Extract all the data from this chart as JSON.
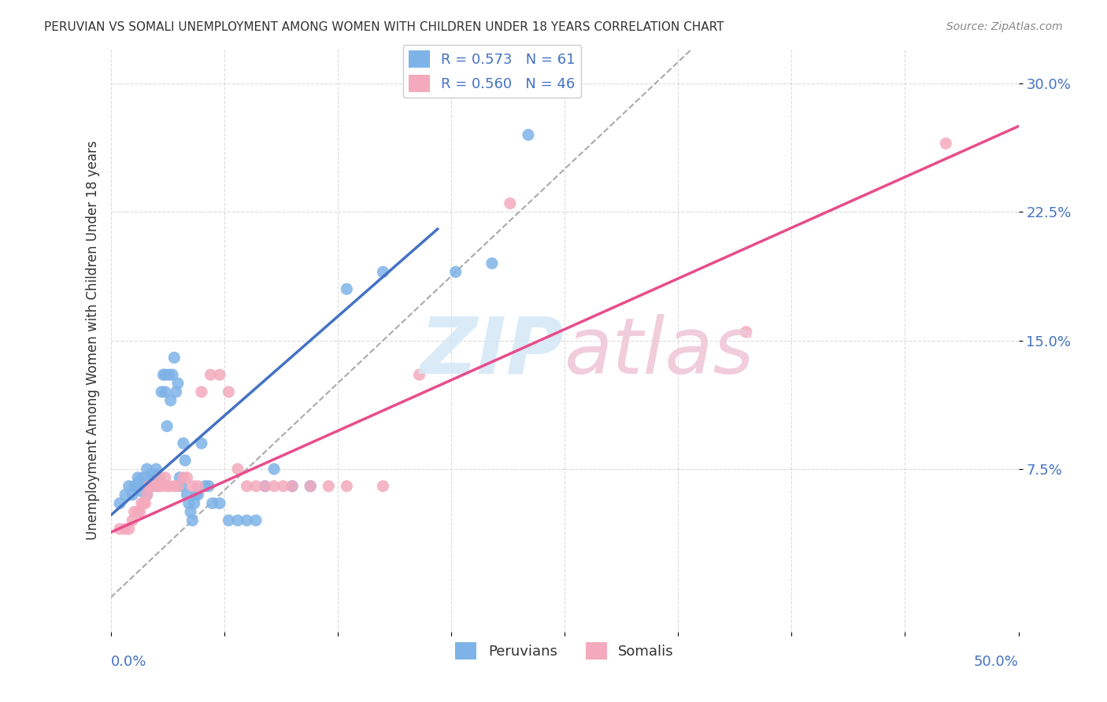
{
  "title": "PERUVIAN VS SOMALI UNEMPLOYMENT AMONG WOMEN WITH CHILDREN UNDER 18 YEARS CORRELATION CHART",
  "source": "Source: ZipAtlas.com",
  "ylabel": "Unemployment Among Women with Children Under 18 years",
  "xlim": [
    0.0,
    0.5
  ],
  "ylim": [
    -0.02,
    0.32
  ],
  "yticks": [
    0.075,
    0.15,
    0.225,
    0.3
  ],
  "ytick_labels": [
    "7.5%",
    "15.0%",
    "22.5%",
    "30.0%"
  ],
  "xticks": [
    0.0,
    0.0625,
    0.125,
    0.1875,
    0.25,
    0.3125,
    0.375,
    0.4375,
    0.5
  ],
  "peruvian_color": "#7EB3E8",
  "somali_color": "#F4AABC",
  "peruvian_R": 0.573,
  "peruvian_N": 61,
  "somali_R": 0.56,
  "somali_N": 46,
  "peruvian_scatter_x": [
    0.005,
    0.008,
    0.01,
    0.012,
    0.013,
    0.015,
    0.015,
    0.016,
    0.017,
    0.018,
    0.02,
    0.02,
    0.021,
    0.022,
    0.022,
    0.023,
    0.024,
    0.025,
    0.025,
    0.026,
    0.027,
    0.028,
    0.029,
    0.03,
    0.03,
    0.031,
    0.032,
    0.033,
    0.034,
    0.035,
    0.036,
    0.037,
    0.038,
    0.039,
    0.04,
    0.041,
    0.042,
    0.043,
    0.044,
    0.045,
    0.046,
    0.047,
    0.048,
    0.05,
    0.052,
    0.054,
    0.056,
    0.06,
    0.065,
    0.07,
    0.075,
    0.08,
    0.085,
    0.09,
    0.1,
    0.11,
    0.13,
    0.15,
    0.19,
    0.21,
    0.23
  ],
  "peruvian_scatter_y": [
    0.055,
    0.06,
    0.065,
    0.06,
    0.065,
    0.07,
    0.065,
    0.068,
    0.062,
    0.07,
    0.06,
    0.075,
    0.065,
    0.07,
    0.072,
    0.065,
    0.07,
    0.072,
    0.075,
    0.065,
    0.068,
    0.12,
    0.13,
    0.12,
    0.13,
    0.1,
    0.13,
    0.115,
    0.13,
    0.14,
    0.12,
    0.125,
    0.07,
    0.065,
    0.09,
    0.08,
    0.06,
    0.055,
    0.05,
    0.045,
    0.055,
    0.06,
    0.06,
    0.09,
    0.065,
    0.065,
    0.055,
    0.055,
    0.045,
    0.045,
    0.045,
    0.045,
    0.065,
    0.075,
    0.065,
    0.065,
    0.18,
    0.19,
    0.19,
    0.195,
    0.27
  ],
  "somali_scatter_x": [
    0.005,
    0.008,
    0.01,
    0.012,
    0.013,
    0.015,
    0.016,
    0.017,
    0.018,
    0.019,
    0.02,
    0.021,
    0.022,
    0.023,
    0.025,
    0.026,
    0.027,
    0.028,
    0.03,
    0.031,
    0.032,
    0.035,
    0.037,
    0.04,
    0.042,
    0.045,
    0.048,
    0.05,
    0.055,
    0.06,
    0.065,
    0.07,
    0.075,
    0.08,
    0.085,
    0.09,
    0.095,
    0.1,
    0.11,
    0.12,
    0.13,
    0.15,
    0.17,
    0.22,
    0.35,
    0.46
  ],
  "somali_scatter_y": [
    0.04,
    0.04,
    0.04,
    0.045,
    0.05,
    0.05,
    0.05,
    0.055,
    0.055,
    0.055,
    0.06,
    0.065,
    0.065,
    0.065,
    0.065,
    0.065,
    0.07,
    0.065,
    0.07,
    0.065,
    0.065,
    0.065,
    0.065,
    0.07,
    0.07,
    0.065,
    0.065,
    0.12,
    0.13,
    0.13,
    0.12,
    0.075,
    0.065,
    0.065,
    0.065,
    0.065,
    0.065,
    0.065,
    0.065,
    0.065,
    0.065,
    0.065,
    0.13,
    0.23,
    0.155,
    0.265
  ],
  "peruvian_line_x": [
    0.0,
    0.18
  ],
  "peruvian_line_y": [
    0.048,
    0.215
  ],
  "somali_line_x": [
    0.0,
    0.5
  ],
  "somali_line_y": [
    0.038,
    0.275
  ],
  "diagonal_line_x": [
    0.0,
    0.32
  ],
  "diagonal_line_y": [
    0.0,
    0.32
  ]
}
